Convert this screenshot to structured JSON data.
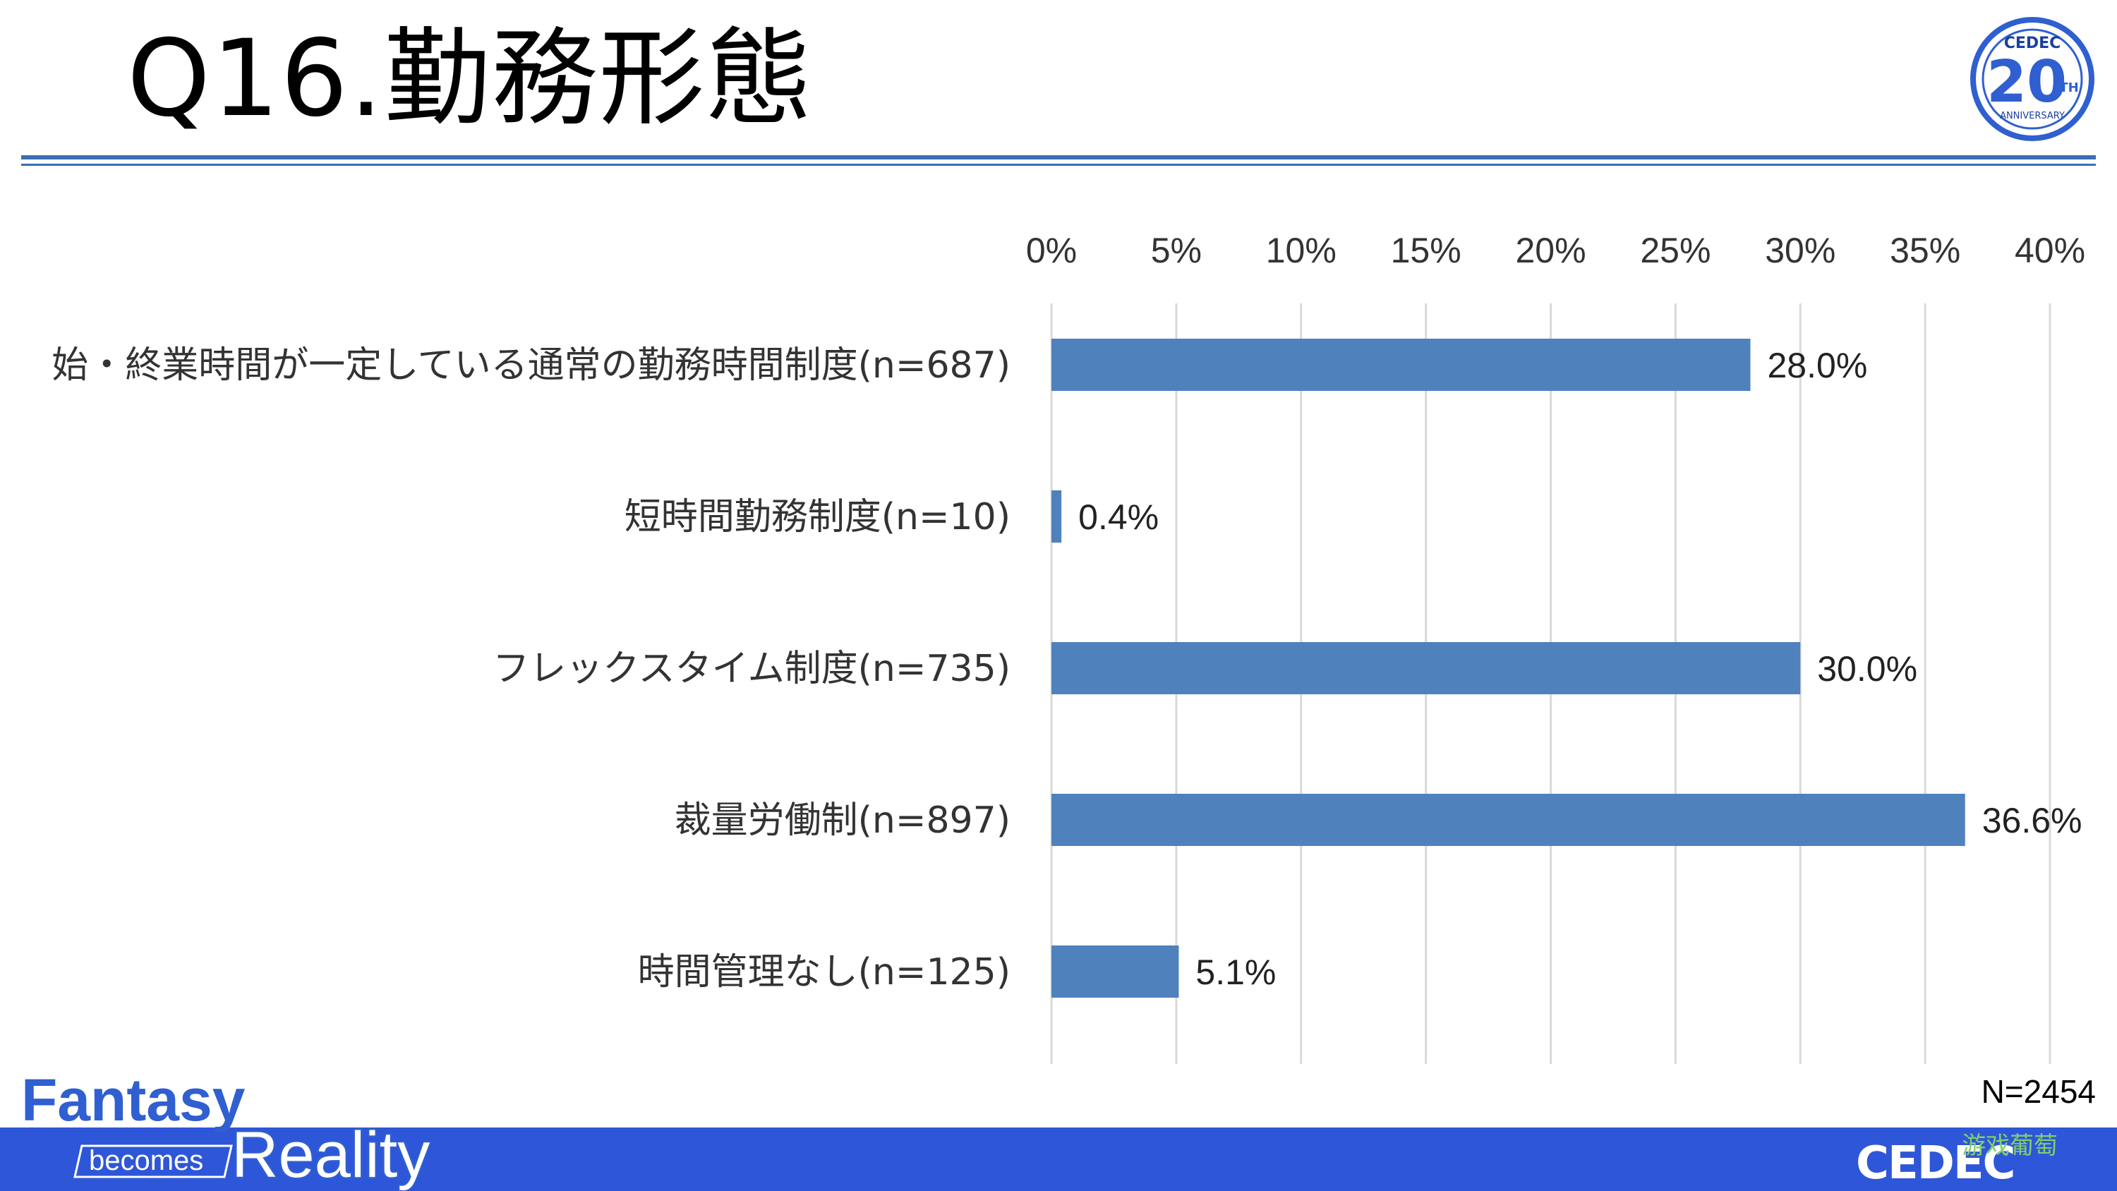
{
  "title": "Q16.勤務形態",
  "sample_size": "N=2454",
  "badge": {
    "top": "CEDEC",
    "number": "20",
    "suffix": "TH",
    "text": "ANNIVERSARY"
  },
  "logo": {
    "line1": "Fantasy",
    "line2": "becomes",
    "line3": "Reality"
  },
  "footer_logo": "CEDEC",
  "watermark": "游戏葡萄",
  "colors": {
    "bar": "#4f81bd",
    "rule": "#3a6eb5",
    "footer": "#2e56d8"
  },
  "chart_data": {
    "type": "bar",
    "orientation": "horizontal",
    "xlim": [
      0,
      40
    ],
    "x_ticks": [
      "0%",
      "5%",
      "10%",
      "15%",
      "20%",
      "25%",
      "30%",
      "35%",
      "40%"
    ],
    "grid": true,
    "categories": [
      "始・終業時間が一定している通常の勤務時間制度(n=687)",
      "短時間勤務制度(n=10)",
      "フレックスタイム制度(n=735)",
      "裁量労働制(n=897)",
      "時間管理なし(n=125)"
    ],
    "values": [
      28.0,
      0.4,
      30.0,
      36.6,
      5.1
    ],
    "value_labels": [
      "28.0%",
      "0.4%",
      "30.0%",
      "36.6%",
      "5.1%"
    ]
  }
}
